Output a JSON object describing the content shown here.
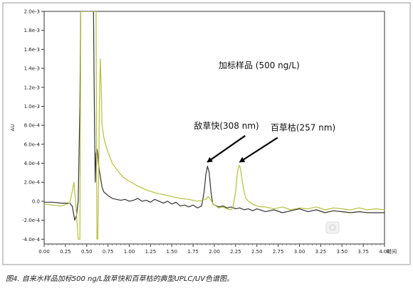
{
  "chart_data": {
    "type": "line",
    "title": "",
    "xlabel": "时间",
    "ylabel": "AU",
    "xlim": [
      0.0,
      4.0
    ],
    "ylim": [
      -0.00045,
      0.002
    ],
    "grid": false,
    "x_ticks": [
      "0.00",
      "0.25",
      "0.50",
      "0.75",
      "1.00",
      "1.25",
      "1.50",
      "1.75",
      "2.00",
      "2.25",
      "2.50",
      "2.75",
      "3.00",
      "3.25",
      "3.50",
      "3.75",
      "4.00"
    ],
    "y_ticks": [
      {
        "label": "2.0e-3",
        "value": 0.002
      },
      {
        "label": "1.8e-3",
        "value": 0.0018
      },
      {
        "label": "1.6e-3",
        "value": 0.0016
      },
      {
        "label": "1.4e-3",
        "value": 0.0014
      },
      {
        "label": "1.2e-3",
        "value": 0.0012
      },
      {
        "label": "1.0e-3",
        "value": 0.001
      },
      {
        "label": "8.0e-4",
        "value": 0.0008
      },
      {
        "label": "6.0e-4",
        "value": 0.0006
      },
      {
        "label": "4.0e-4",
        "value": 0.0004
      },
      {
        "label": "2.0e-4",
        "value": 0.0002
      },
      {
        "label": "0.0",
        "value": 0.0
      },
      {
        "label": "-2.0e-4",
        "value": -0.0002
      },
      {
        "label": "-4.0e-4",
        "value": -0.0004
      }
    ],
    "series": [
      {
        "color": "#333333",
        "x": [
          0.0,
          0.1,
          0.2,
          0.3,
          0.33,
          0.36,
          0.38,
          0.4,
          0.42,
          0.43,
          0.44,
          0.45,
          0.5,
          0.55,
          0.58,
          0.59,
          0.6,
          0.61,
          0.62,
          0.63,
          0.64,
          0.65,
          0.66,
          0.68,
          0.7,
          0.75,
          0.8,
          0.85,
          0.9,
          0.95,
          1.0,
          1.05,
          1.1,
          1.15,
          1.2,
          1.25,
          1.3,
          1.35,
          1.4,
          1.45,
          1.5,
          1.55,
          1.6,
          1.65,
          1.7,
          1.75,
          1.8,
          1.85,
          1.88,
          1.9,
          1.92,
          1.94,
          1.96,
          1.98,
          2.0,
          2.05,
          2.1,
          2.15,
          2.2,
          2.25,
          2.3,
          2.35,
          2.4,
          2.45,
          2.5,
          2.6,
          2.7,
          2.8,
          2.9,
          3.0,
          3.1,
          3.2,
          3.3,
          3.4,
          3.5,
          3.6,
          3.7,
          3.8,
          3.9,
          4.0
        ],
        "y": [
          -1e-05,
          -1e-05,
          -2e-05,
          -2e-05,
          -5e-05,
          -0.0002,
          -0.00015,
          0.0,
          0.001,
          0.002,
          0.002,
          0.002,
          0.002,
          0.002,
          0.002,
          0.001,
          0.0002,
          0.0005,
          0.00055,
          0.0005,
          0.00038,
          0.00032,
          0.00026,
          0.00015,
          0.0001,
          6e-05,
          3e-05,
          2e-05,
          1e-05,
          2e-05,
          0.0,
          1e-05,
          3e-05,
          0.0,
          1e-05,
          -1e-05,
          2e-05,
          0.0,
          -2e-05,
          0.0,
          -3e-05,
          -1e-05,
          -5e-05,
          -4e-05,
          -6e-05,
          -4e-05,
          -7e-05,
          -5e-05,
          0.0001,
          0.00028,
          0.00037,
          0.0003,
          0.0001,
          -2e-05,
          -4e-05,
          -6e-05,
          -5e-05,
          -7e-05,
          -6e-05,
          -8e-05,
          -7e-05,
          -9e-05,
          -8e-05,
          -0.0001,
          -8e-05,
          -0.00011,
          -9e-05,
          -0.00012,
          -0.0001,
          -8e-05,
          -0.00011,
          -9e-05,
          -0.00012,
          -0.0001,
          -0.00011,
          -0.00012,
          -0.00011,
          -0.00012,
          -0.00012,
          -0.00012
        ]
      },
      {
        "color": "#b5bf3c",
        "x": [
          0.0,
          0.1,
          0.2,
          0.3,
          0.33,
          0.35,
          0.37,
          0.4,
          0.42,
          0.43,
          0.5,
          0.59,
          0.6,
          0.61,
          0.62,
          0.63,
          0.64,
          0.65,
          0.66,
          0.67,
          0.68,
          0.7,
          0.72,
          0.75,
          0.8,
          0.85,
          0.9,
          0.95,
          1.0,
          1.1,
          1.2,
          1.3,
          1.4,
          1.5,
          1.6,
          1.7,
          1.8,
          1.85,
          1.9,
          1.93,
          1.96,
          2.0,
          2.05,
          2.1,
          2.15,
          2.2,
          2.22,
          2.25,
          2.27,
          2.29,
          2.3,
          2.31,
          2.33,
          2.35,
          2.37,
          2.4,
          2.45,
          2.5,
          2.55,
          2.6,
          2.7,
          2.8,
          2.9,
          3.0,
          3.1,
          3.2,
          3.3,
          3.4,
          3.5,
          3.6,
          3.7,
          3.8,
          3.9,
          4.0
        ],
        "y": [
          -3e-05,
          -4e-05,
          -5e-05,
          -2e-05,
          0.0001,
          0.0002,
          0.0,
          -0.0004,
          -0.0004,
          0.002,
          0.002,
          0.002,
          0.002,
          0.002,
          -0.0004,
          -0.0004,
          0.0002,
          0.0011,
          0.0015,
          0.0012,
          0.0008,
          0.00068,
          0.0006,
          0.00052,
          0.0004,
          0.00034,
          0.00028,
          0.00024,
          0.00021,
          0.00016,
          0.00012,
          9e-05,
          7e-05,
          5e-05,
          3e-05,
          2e-05,
          0.0,
          1e-05,
          2e-05,
          5e-05,
          1e-05,
          -4e-05,
          -7e-05,
          -6e-05,
          -8e-05,
          -9e-05,
          -6e-05,
          0.0001,
          0.0003,
          0.00038,
          0.00037,
          0.00033,
          0.0002,
          0.0001,
          3e-05,
          0.0,
          -3e-05,
          -5e-05,
          -6e-05,
          -6e-05,
          -8e-05,
          -6e-05,
          -9e-05,
          -7e-05,
          -8e-05,
          -6e-05,
          -9e-05,
          -7e-05,
          -8e-05,
          -9e-05,
          -7e-05,
          -9e-05,
          -8e-05,
          -9e-05
        ]
      }
    ],
    "annotations": [
      {
        "text": "加标样品 (500 ng/L)",
        "x": 2.05,
        "y": 0.0014
      },
      {
        "text": "敌草快(308 nm)",
        "x": 1.76,
        "y": 0.000765,
        "arrow_to": [
          1.93,
          0.00042
        ]
      },
      {
        "text": "百草枯(257 nm)",
        "x": 2.66,
        "y": 0.000745,
        "arrow_to": [
          2.31,
          0.00042
        ]
      }
    ],
    "caption": "图4. 自来水样品加标500 ng/L敌草快和百草枯的典型UPLC/UV色谱图。"
  }
}
